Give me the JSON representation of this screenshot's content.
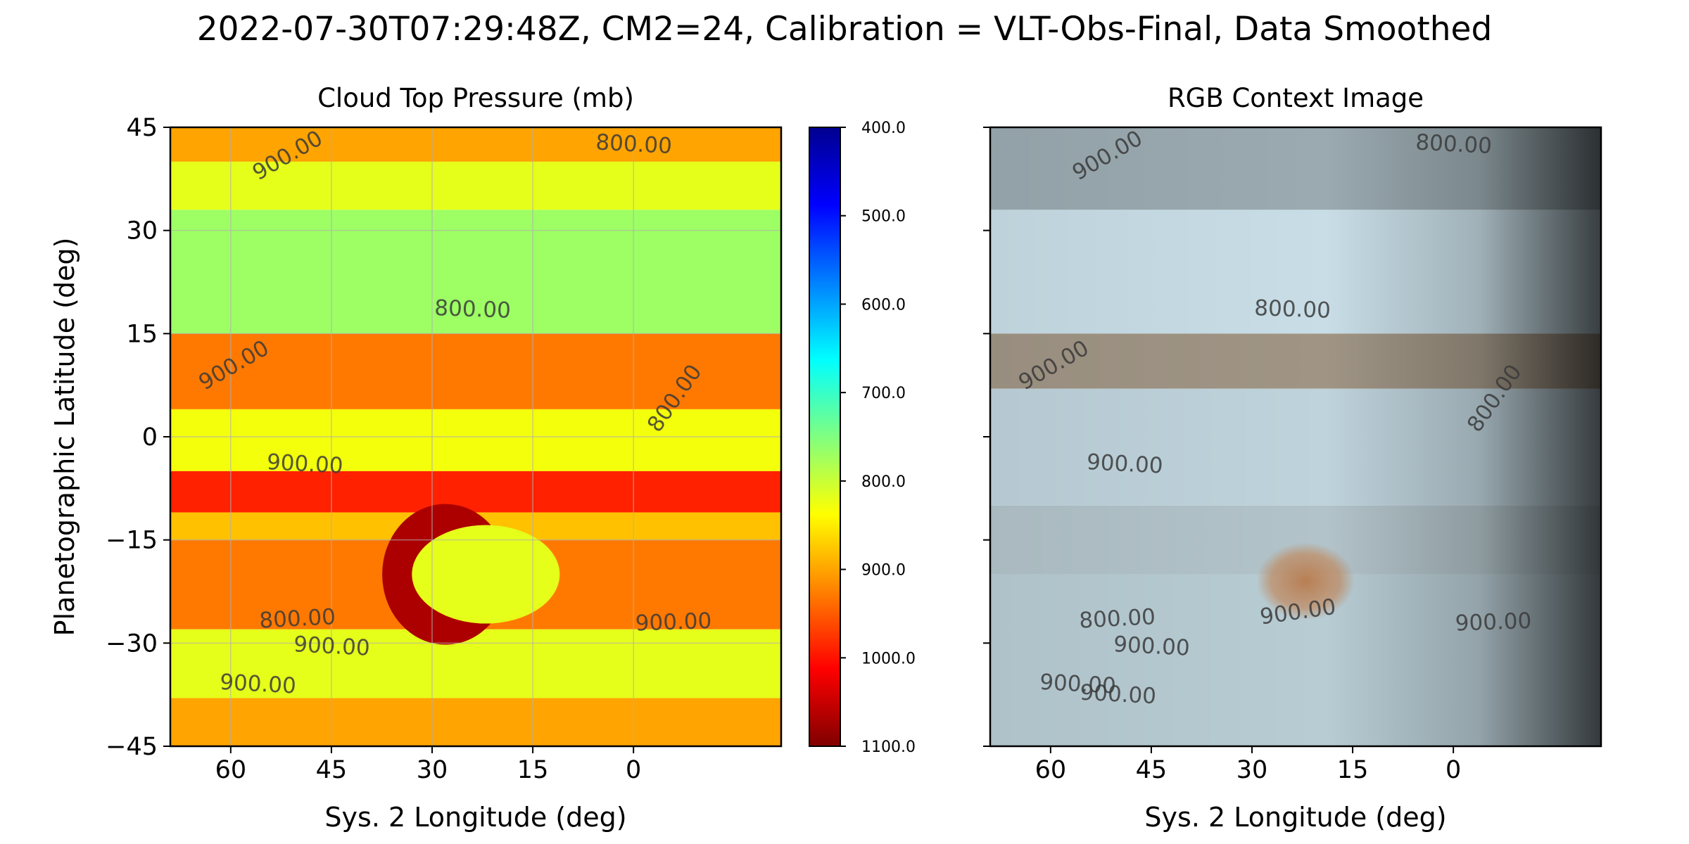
{
  "figure_title": "2022-07-30T07:29:48Z, CM2=24, Calibration = VLT-Obs-Final, Data Smoothed",
  "chart_data": [
    {
      "type": "heatmap",
      "title": "Cloud Top Pressure (mb)",
      "xlabel": "Sys. 2 Longitude (deg)",
      "ylabel": "Planetographic Latitude (deg)",
      "xlim": [
        69,
        -22
      ],
      "ylim": [
        -45,
        45
      ],
      "x_direction": "decreasing",
      "xticks": [
        60,
        45,
        30,
        15,
        0
      ],
      "xtick_labels": [
        "60",
        "45",
        "30",
        "15",
        "0"
      ],
      "yticks": [
        45,
        30,
        15,
        0,
        -15,
        -30,
        -45
      ],
      "ytick_labels": [
        "45",
        "30",
        "15",
        "0",
        "−15",
        "−30",
        "−45"
      ],
      "grid": true,
      "colormap": "jet (reversed: dark blue = low pressure, dark red = high pressure)",
      "colorbar": {
        "range": [
          400,
          1100
        ],
        "ticks": [
          400,
          500,
          600,
          700,
          800,
          900,
          1000,
          1100
        ],
        "tick_labels": [
          "400.0",
          "500.0",
          "600.0",
          "700.0",
          "800.0",
          "900.0",
          "1000.0",
          "1100.0"
        ],
        "colors": [
          "#00008f",
          "#0000ff",
          "#0080ff",
          "#00ffff",
          "#80ff80",
          "#ffff00",
          "#ff8000",
          "#ff0000",
          "#800000"
        ]
      },
      "bands": [
        {
          "lat_range": [
            40,
            45
          ],
          "pressure": 900
        },
        {
          "lat_range": [
            33,
            40
          ],
          "pressure": 820
        },
        {
          "lat_range": [
            15,
            33
          ],
          "pressure": 770
        },
        {
          "lat_range": [
            4,
            15
          ],
          "pressure": 930
        },
        {
          "lat_range": [
            -5,
            4
          ],
          "pressure": 830
        },
        {
          "lat_range": [
            -11,
            -5
          ],
          "pressure": 990
        },
        {
          "lat_range": [
            -15,
            -11
          ],
          "pressure": 880
        },
        {
          "lat_range": [
            -28,
            -15
          ],
          "pressure": 930
        },
        {
          "lat_range": [
            -38,
            -28
          ],
          "pressure": 820
        },
        {
          "lat_range": [
            -45,
            -38
          ],
          "pressure": 900
        }
      ],
      "features": [
        {
          "label": "Great Red Spot",
          "lon": 22,
          "lat": -20,
          "pressure": 820
        },
        {
          "label": "dark ring",
          "lon": 28,
          "lat": -20,
          "pressure": 1070
        }
      ],
      "contour_levels": [
        800,
        900
      ],
      "contour_labels": [
        {
          "text": "800.00",
          "lon": 0,
          "lat": 41.5,
          "angle": 3
        },
        {
          "text": "900.00",
          "lon": 51,
          "lat": 40,
          "angle": -30
        },
        {
          "text": "800.00",
          "lon": 24,
          "lat": 17.5,
          "angle": 2
        },
        {
          "text": "900.00",
          "lon": 59,
          "lat": 9.5,
          "angle": -30
        },
        {
          "text": "800.00",
          "lon": -7,
          "lat": 5,
          "angle": -55
        },
        {
          "text": "900.00",
          "lon": 49,
          "lat": -5,
          "angle": 3
        },
        {
          "text": "800.00",
          "lon": 50,
          "lat": -27.5,
          "angle": -3
        },
        {
          "text": "900.00",
          "lon": 45,
          "lat": -31.5,
          "angle": 3
        },
        {
          "text": "900.00",
          "lon": -6,
          "lat": -28,
          "angle": -2
        },
        {
          "text": "900.00",
          "lon": 56,
          "lat": -37,
          "angle": 3
        }
      ]
    },
    {
      "type": "image",
      "title": "RGB Context Image",
      "xlabel": "Sys. 2 Longitude (deg)",
      "xlim": [
        69,
        -22
      ],
      "ylim": [
        -45,
        45
      ],
      "xticks": [
        60,
        45,
        30,
        15,
        0
      ],
      "xtick_labels": [
        "60",
        "45",
        "30",
        "15",
        "0"
      ],
      "contour_levels": [
        800,
        900
      ],
      "contour_labels": [
        {
          "text": "800.00",
          "lon": 0,
          "lat": 41.5,
          "angle": 3
        },
        {
          "text": "900.00",
          "lon": 51,
          "lat": 40,
          "angle": -30
        },
        {
          "text": "800.00",
          "lon": 24,
          "lat": 17.5,
          "angle": 2
        },
        {
          "text": "900.00",
          "lon": 59,
          "lat": 9.5,
          "angle": -30
        },
        {
          "text": "800.00",
          "lon": -7,
          "lat": 5,
          "angle": -55
        },
        {
          "text": "900.00",
          "lon": 49,
          "lat": -5,
          "angle": 3
        },
        {
          "text": "800.00",
          "lon": 50,
          "lat": -27.5,
          "angle": -3
        },
        {
          "text": "900.00",
          "lon": 45,
          "lat": -31.5,
          "angle": 3
        },
        {
          "text": "900.00",
          "lon": 23,
          "lat": -26.5,
          "angle": -8
        },
        {
          "text": "900.00",
          "lon": -6,
          "lat": -28,
          "angle": -2
        },
        {
          "text": "900.00",
          "lon": 56,
          "lat": -37,
          "angle": 3
        },
        {
          "text": "900.00",
          "lon": 50,
          "lat": -38.5,
          "angle": 3
        }
      ],
      "bands": [
        {
          "lat_range": [
            33,
            45
          ],
          "color": "#9aaab0"
        },
        {
          "lat_range": [
            15,
            33
          ],
          "color": "#c8dde6"
        },
        {
          "lat_range": [
            7,
            15
          ],
          "color": "#a09585"
        },
        {
          "lat_range": [
            -10,
            7
          ],
          "color": "#bfd3dc"
        },
        {
          "lat_range": [
            -20,
            -10
          ],
          "color": "#b2c3c9"
        },
        {
          "lat_range": [
            -45,
            -20
          ],
          "color": "#b8ccd4"
        }
      ],
      "features": [
        {
          "label": "Great Red Spot",
          "lon": 22,
          "lat": -21,
          "color": "#c08a60"
        }
      ]
    }
  ]
}
